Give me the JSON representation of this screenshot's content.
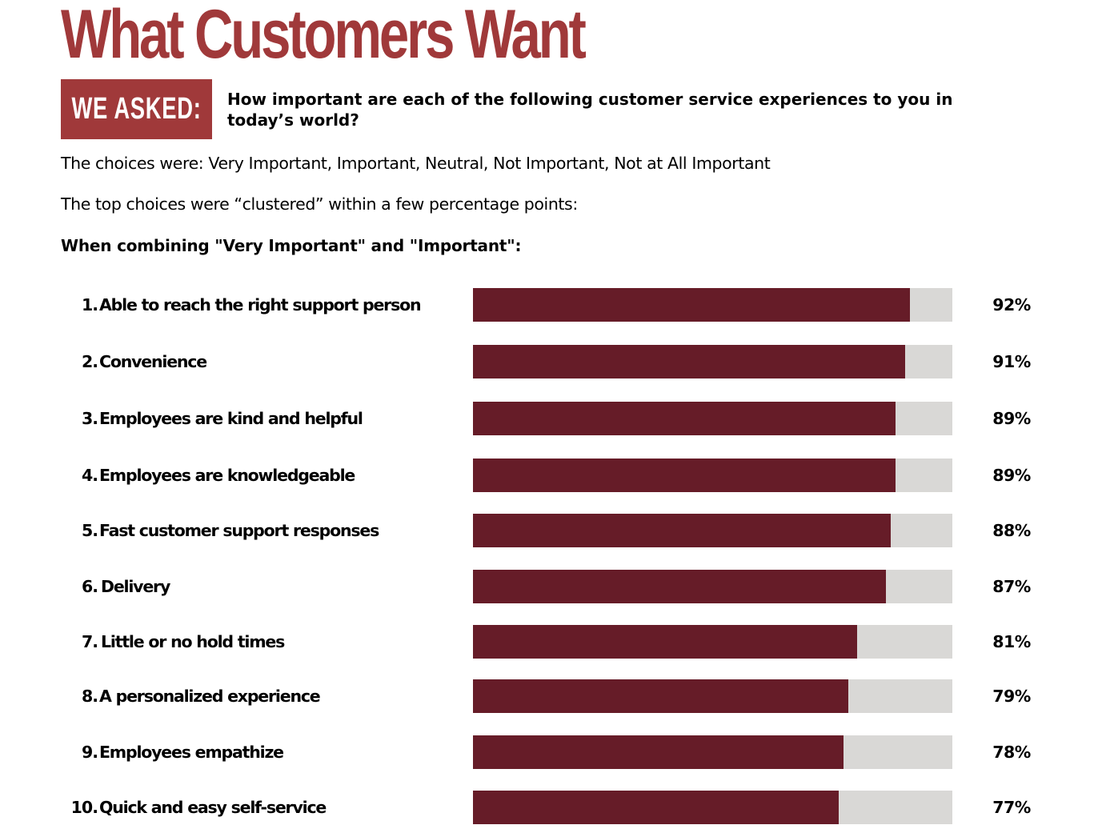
{
  "header": {
    "title": "What Customers Want",
    "asked_label": "WE ASKED:",
    "question": "How important are each of the following customer service experiences to you in today’s world?"
  },
  "intro": {
    "choices_line": "The choices were: Very Important, Important, Neutral, Not Important, Not at All Important",
    "clustered_line": "The top choices were “clustered” within a few percentage points:",
    "combining_line": "When combining \"Very Important\" and \"Important\":"
  },
  "colors": {
    "brand_red": "#a0393a",
    "bar_fill": "#661c28",
    "bar_track": "#d9d8d6"
  },
  "chart_data": {
    "type": "bar",
    "orientation": "horizontal",
    "title": "When combining \"Very Important\" and \"Important\":",
    "xlabel": "",
    "ylabel": "",
    "xlim": [
      0,
      100
    ],
    "grid": false,
    "legend": "none",
    "categories": [
      "Able to reach the right support person",
      "Convenience",
      "Employees are kind and helpful",
      "Employees are knowledgeable",
      "Fast customer support responses",
      "Delivery",
      "Little or no hold times",
      "A personalized experience",
      "Employees empathize",
      "Quick and easy self-service"
    ],
    "numbers": [
      "1.",
      "2.",
      "3.",
      "4.",
      "5.",
      "6.",
      "7.",
      "8.",
      "9.",
      "10."
    ],
    "values": [
      92,
      91,
      89,
      89,
      88,
      87,
      81,
      79,
      78,
      77
    ],
    "value_labels": [
      "92%",
      "91%",
      "89%",
      "89%",
      "88%",
      "87%",
      "81%",
      "79%",
      "78%",
      "77%"
    ]
  }
}
